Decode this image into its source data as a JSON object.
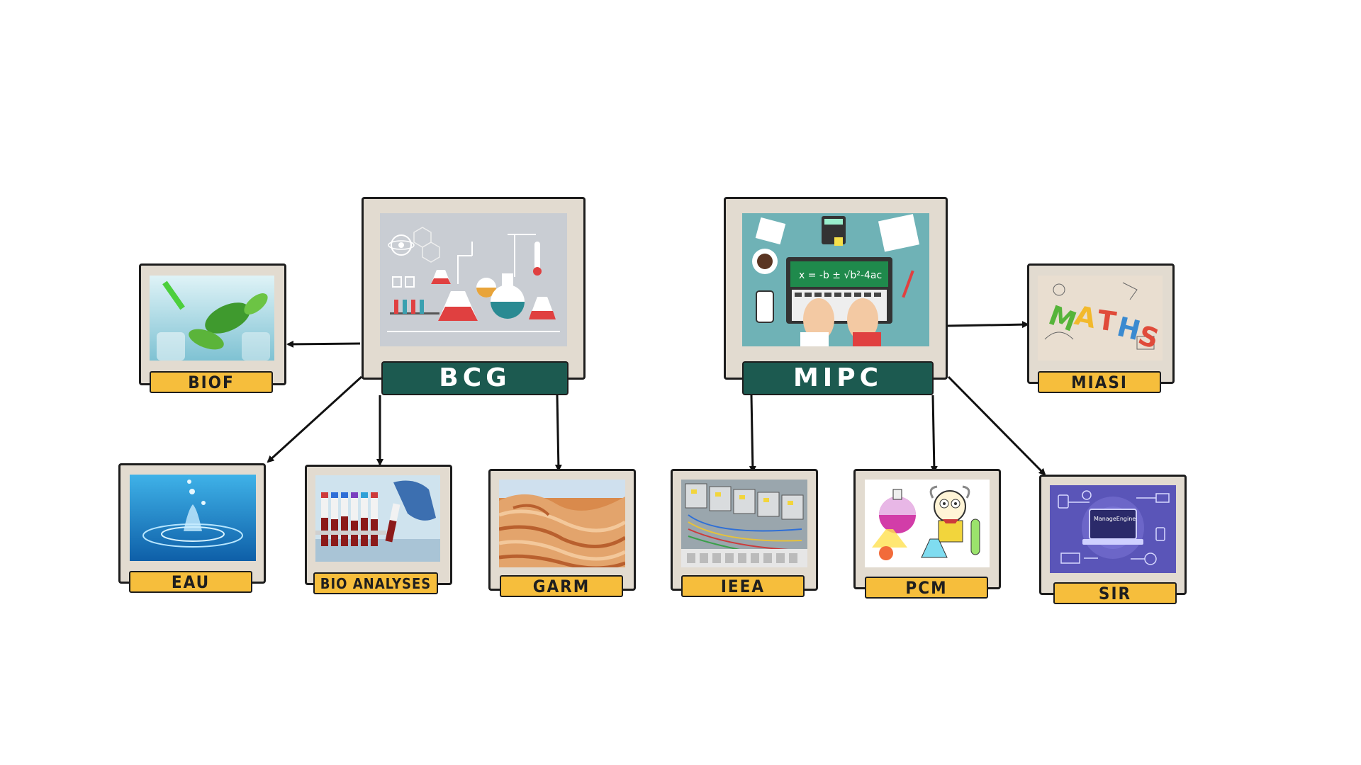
{
  "diagram": {
    "parents": [
      {
        "id": "bcg",
        "label": "BCG",
        "image": "chemistry-lab-illustration"
      },
      {
        "id": "mipc",
        "label": "MIPC",
        "image": "math-laptop-desk-illustration"
      }
    ],
    "children": [
      {
        "id": "biof",
        "label": "BIOF",
        "parent": "bcg",
        "image": "plant-leaf-pipette-photo"
      },
      {
        "id": "eau",
        "label": "EAU",
        "parent": "bcg",
        "image": "water-splash-photo"
      },
      {
        "id": "bio_analyses",
        "label": "BIO ANALYSES",
        "parent": "bcg",
        "image": "blood-test-tubes-photo"
      },
      {
        "id": "garm",
        "label": "GARM",
        "parent": "bcg",
        "image": "sandstone-canyon-photo"
      },
      {
        "id": "miasi",
        "label": "MIASI",
        "parent": "mipc",
        "image": "maths-letters-photo"
      },
      {
        "id": "ieea",
        "label": "IEEA",
        "parent": "mipc",
        "image": "electrical-contactors-photo"
      },
      {
        "id": "pcm",
        "label": "PCM",
        "parent": "mipc",
        "image": "cartoon-scientist-flasks"
      },
      {
        "id": "sir",
        "label": "SIR",
        "parent": "mipc",
        "image": "network-laptop-illustration"
      }
    ],
    "colors": {
      "card_bg": "#e2dbd0",
      "label_bg": "#f6be3c",
      "parent_label_bg": "#1c5a50",
      "arrow": "#111111"
    }
  }
}
